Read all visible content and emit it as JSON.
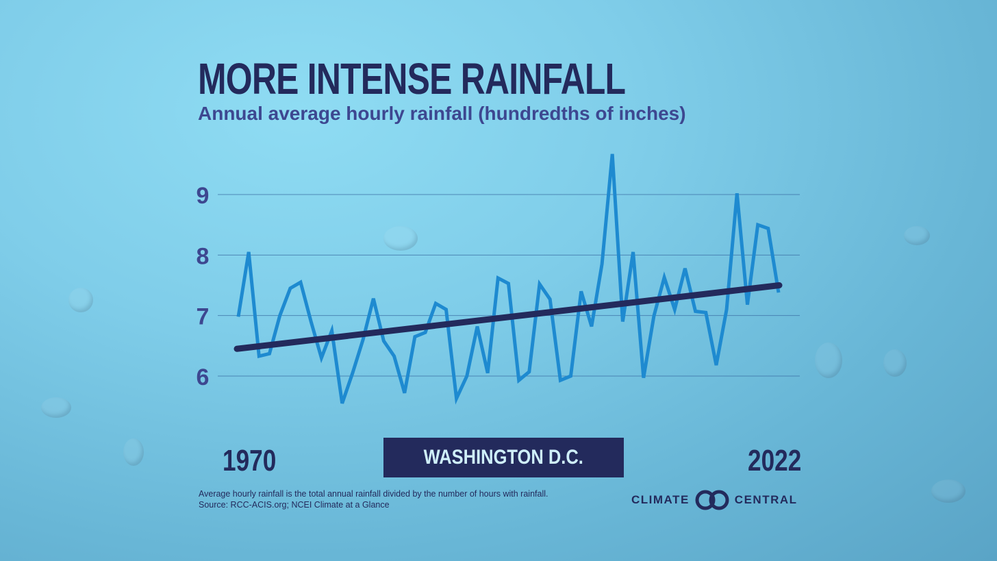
{
  "title": "MORE INTENSE RAINFALL",
  "subtitle": "Annual average hourly rainfall (hundredths of inches)",
  "location": "WASHINGTON D.C.",
  "note_line1": "Average hourly rainfall is the total annual rainfall divided by the number of hours with rainfall.",
  "note_line2": "Source: RCC-ACIS.org; NCEI Climate at a Glance",
  "brand_left": "CLIMATE",
  "brand_right": "CENTRAL",
  "colors": {
    "series": "#1e8ad0",
    "trend": "#232a5c",
    "text": "#232a5c",
    "subtitle": "#3d4790"
  },
  "chart_data": {
    "type": "line",
    "title": "MORE INTENSE RAINFALL",
    "subtitle": "Annual average hourly rainfall (hundredths of inches)",
    "x_start_label": "1970",
    "x_end_label": "2022",
    "ylim": [
      5.5,
      9.7
    ],
    "yticks": [
      6,
      7,
      8,
      9
    ],
    "grid": true,
    "series": [
      {
        "values": [
          6.98,
          8.05,
          6.33,
          6.37,
          7.0,
          7.45,
          7.55,
          6.9,
          6.3,
          6.75,
          5.55,
          6.05,
          6.6,
          7.28,
          6.58,
          6.33,
          5.72,
          6.65,
          6.72,
          7.2,
          7.1,
          5.63,
          6.0,
          6.82,
          6.05,
          7.62,
          7.53,
          5.93,
          6.07,
          7.52,
          7.27,
          5.93,
          6.0,
          7.4,
          6.82,
          7.85,
          9.67,
          6.9,
          8.05,
          5.97,
          6.99,
          7.63,
          7.1,
          7.78,
          7.07,
          7.05,
          6.18,
          7.1,
          9.02,
          7.18,
          8.5,
          8.44,
          7.38
        ]
      },
      {
        "values": [
          6.45,
          7.5
        ]
      }
    ]
  }
}
